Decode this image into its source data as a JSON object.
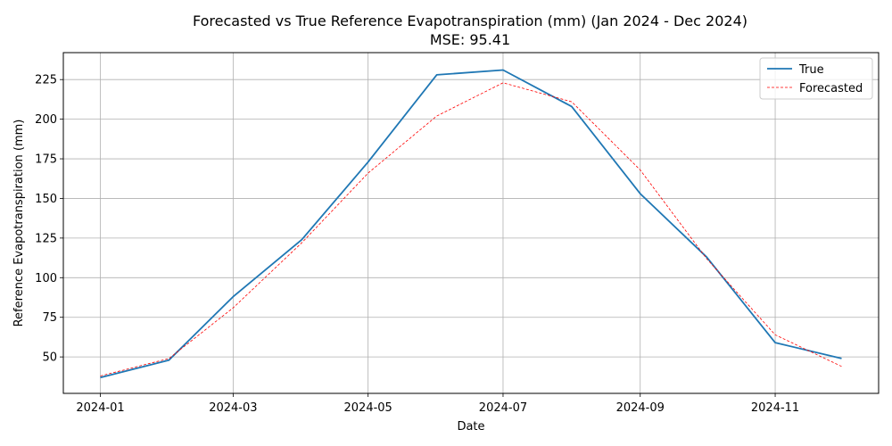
{
  "chart_data": {
    "type": "line",
    "title": "Forecasted vs True Reference Evapotranspiration (mm) (Jan 2024 - Dec 2024)",
    "subtitle": "MSE: 95.41",
    "xlabel": "Date",
    "ylabel": "Reference Evapotranspiration (mm)",
    "x": [
      "2024-01",
      "2024-02",
      "2024-03",
      "2024-04",
      "2024-05",
      "2024-06",
      "2024-07",
      "2024-08",
      "2024-09",
      "2024-10",
      "2024-11",
      "2024-12"
    ],
    "x_ticks": [
      "2024-01",
      "2024-03",
      "2024-05",
      "2024-07",
      "2024-09",
      "2024-11"
    ],
    "y_ticks": [
      50,
      75,
      100,
      125,
      150,
      175,
      200,
      225
    ],
    "ylim": [
      27,
      242
    ],
    "grid": true,
    "legend_position": "top-right",
    "series": [
      {
        "name": "True",
        "color": "#1f77b4",
        "style": "solid",
        "values": [
          37,
          48,
          88,
          124,
          173,
          228,
          231,
          208,
          153,
          113,
          59,
          49
        ]
      },
      {
        "name": "Forecasted",
        "color": "#ff0000",
        "style": "dashed",
        "values": [
          38,
          49,
          81,
          122,
          166,
          202,
          223,
          211,
          168,
          112,
          64,
          44
        ]
      }
    ]
  }
}
